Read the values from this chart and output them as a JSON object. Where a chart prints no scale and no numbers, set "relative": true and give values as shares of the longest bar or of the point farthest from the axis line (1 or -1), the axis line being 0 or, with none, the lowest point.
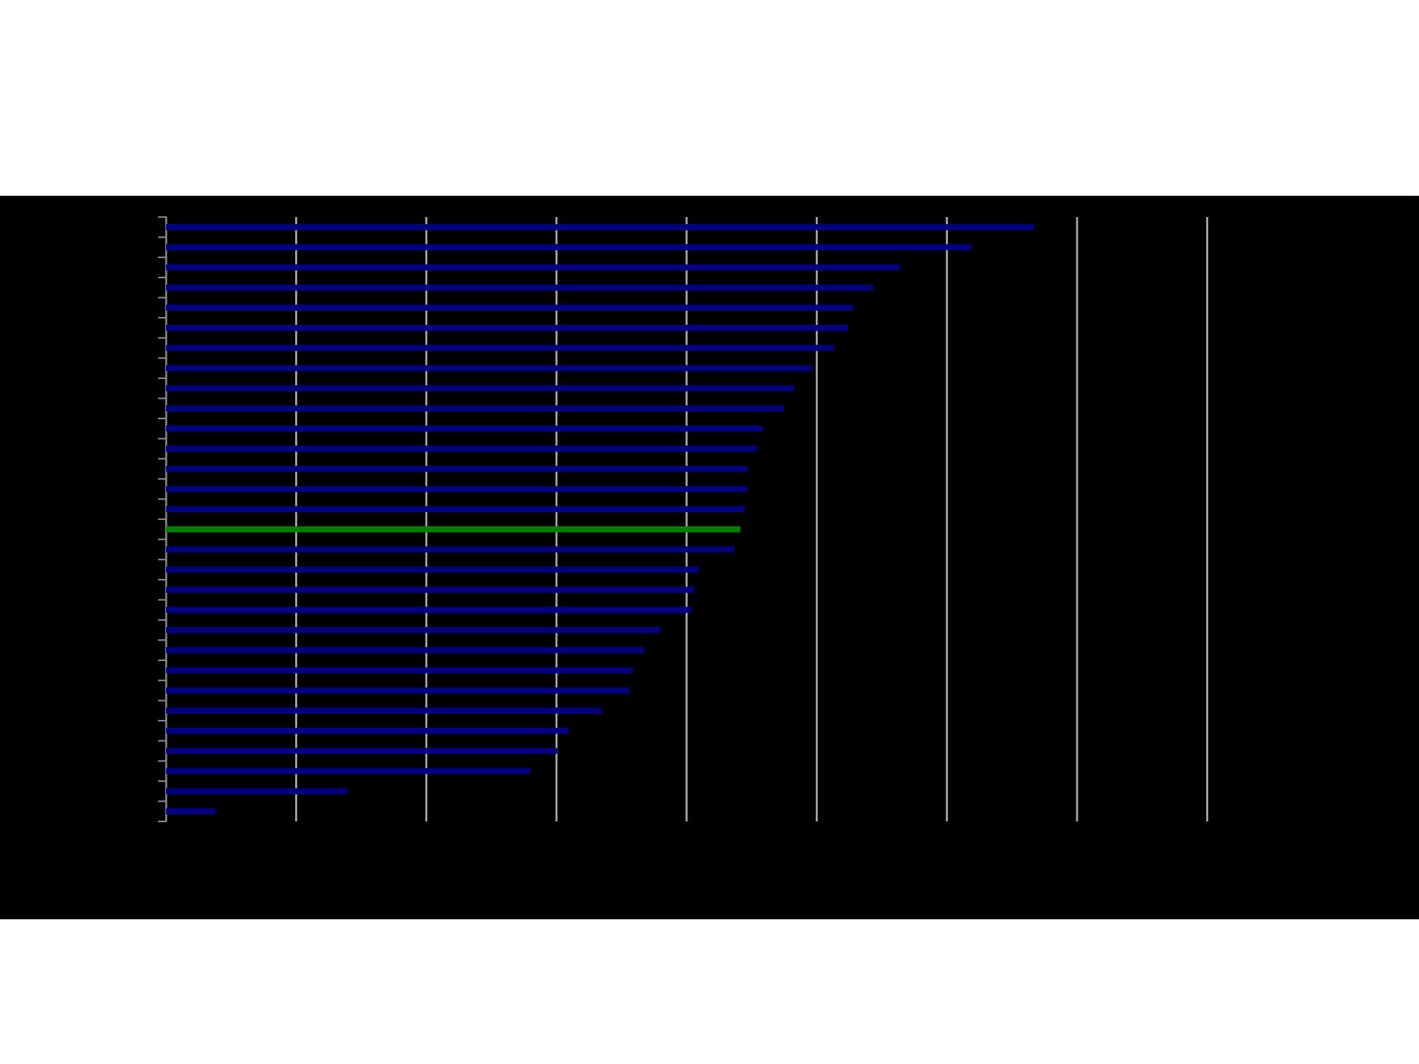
{
  "chart_data": {
    "type": "bar",
    "orientation": "horizontal",
    "relative": true,
    "grid": "x",
    "tick_labels": false,
    "categories": [
      null,
      null,
      null,
      null,
      null,
      null,
      null,
      null,
      null,
      null,
      null,
      null,
      null,
      null,
      null,
      null,
      null,
      null,
      null,
      null,
      null,
      null,
      null,
      null,
      null,
      null,
      null,
      null,
      null,
      null
    ],
    "values": [
      1,
      0.928,
      0.846,
      0.815,
      0.792,
      0.786,
      0.77,
      0.745,
      0.724,
      0.712,
      0.688,
      0.681,
      0.67,
      0.67,
      0.667,
      0.662,
      0.655,
      0.614,
      0.609,
      0.605,
      0.57,
      0.551,
      0.538,
      0.534,
      0.502,
      0.464,
      0.451,
      0.42,
      0.209,
      0.057
    ],
    "colors": [
      "#000080",
      "#000080",
      "#000080",
      "#000080",
      "#000080",
      "#000080",
      "#000080",
      "#000080",
      "#000080",
      "#000080",
      "#000080",
      "#000080",
      "#000080",
      "#000080",
      "#000080",
      "#008000",
      "#000080",
      "#000080",
      "#000080",
      "#000080",
      "#000080",
      "#000080",
      "#000080",
      "#000080",
      "#000080",
      "#000080",
      "#000080",
      "#000080",
      "#000080",
      "#000080"
    ]
  }
}
